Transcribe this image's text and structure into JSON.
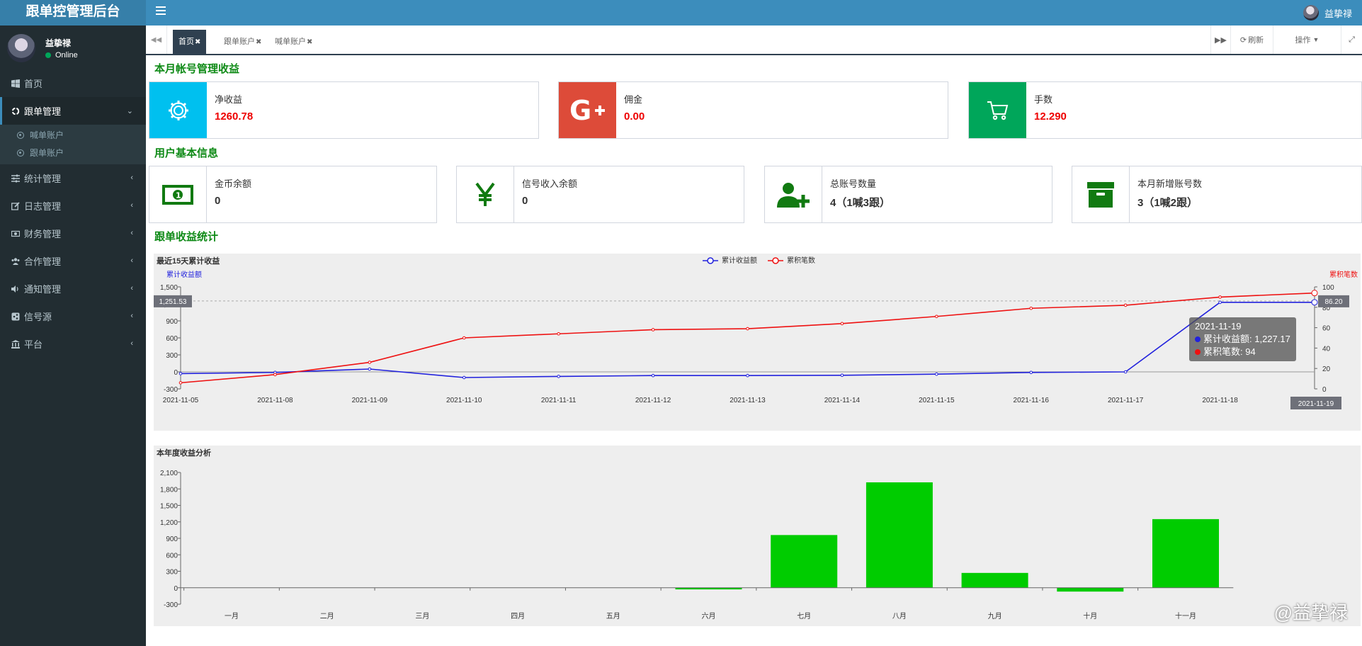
{
  "app": {
    "title": "跟单控管理后台"
  },
  "header": {
    "username": "益挚禄"
  },
  "sidebar": {
    "user": {
      "name": "益挚禄",
      "status": "Online"
    },
    "items": [
      {
        "label": "首页",
        "icon": "windows-icon"
      },
      {
        "label": "跟单管理",
        "icon": "recycle-icon"
      },
      {
        "label": "统计管理",
        "icon": "sliders-icon"
      },
      {
        "label": "日志管理",
        "icon": "edit-icon"
      },
      {
        "label": "财务管理",
        "icon": "money-icon"
      },
      {
        "label": "合作管理",
        "icon": "users-icon"
      },
      {
        "label": "通知管理",
        "icon": "volume-icon"
      },
      {
        "label": "信号源",
        "icon": "share-icon"
      },
      {
        "label": "平台",
        "icon": "bank-icon"
      }
    ],
    "submenu": [
      {
        "label": "喊单账户"
      },
      {
        "label": "跟单账户"
      }
    ]
  },
  "tabs": {
    "items": [
      {
        "label": "首页"
      },
      {
        "label": "跟单账户"
      },
      {
        "label": "喊单账户"
      }
    ],
    "close_glyph": "✖",
    "refresh": "刷新",
    "actions": "操作"
  },
  "sections": {
    "monthly_title": "本月帐号管理收益",
    "user_info_title": "用户基本信息",
    "stats_title": "跟单收益统计"
  },
  "monthly": [
    {
      "label": "净收益",
      "value": "1260.78",
      "color": "#00c0ef",
      "icon": "gear-icon"
    },
    {
      "label": "佣金",
      "value": "0.00",
      "color": "#dd4b39",
      "icon": "google-plus-icon"
    },
    {
      "label": "手数",
      "value": "12.290",
      "color": "#00a65a",
      "icon": "cart-icon"
    }
  ],
  "user_info": [
    {
      "label": "金币余额",
      "value": "0",
      "icon": "money-bill-icon"
    },
    {
      "label": "信号收入余额",
      "value": "0",
      "icon": "yen-icon"
    },
    {
      "label": "总账号数量",
      "value": "4（1喊3跟）",
      "icon": "user-plus-icon"
    },
    {
      "label": "本月新增账号数",
      "value": "3（1喊2跟）",
      "icon": "archive-icon"
    }
  ],
  "chart_data": [
    {
      "type": "line",
      "title": "最近15天累计收益",
      "x": [
        "2021-11-05",
        "2021-11-08",
        "2021-11-09",
        "2021-11-10",
        "2021-11-11",
        "2021-11-12",
        "2021-11-13",
        "2021-11-14",
        "2021-11-15",
        "2021-11-16",
        "2021-11-17",
        "2021-11-18",
        "2021-11-19"
      ],
      "series": [
        {
          "name": "累计收益额",
          "axis": "left",
          "color": "#2222dd",
          "values": [
            -30,
            -10,
            50,
            -100,
            -80,
            -65,
            -65,
            -60,
            -40,
            -10,
            0,
            1227.17,
            1227.17
          ]
        },
        {
          "name": "累积笔数",
          "axis": "right",
          "color": "#ee1111",
          "values": [
            6,
            14,
            26,
            50,
            54,
            58,
            59,
            64,
            71,
            79,
            82,
            90,
            94
          ]
        }
      ],
      "left_axis": {
        "label": "累计收益额",
        "min": -300,
        "max": 1500,
        "ticks": [
          "-300",
          "0",
          "300",
          "600",
          "900",
          "1,200",
          "1,500"
        ]
      },
      "right_axis": {
        "label": "累积笔数",
        "min": 0,
        "max": 100,
        "ticks": [
          "0",
          "20",
          "40",
          "60",
          "80",
          "100"
        ]
      },
      "crosshair": {
        "left_value": "1,251.53",
        "right_value": "86.20",
        "x_label": "2021-11-19"
      },
      "tooltip": {
        "title": "2021-11-19",
        "line1": "累计收益额: 1,227.17",
        "line2": "累积笔数: 94"
      },
      "legend": "top-center"
    },
    {
      "type": "bar",
      "title": "本年度收益分析",
      "categories": [
        "一月",
        "二月",
        "三月",
        "四月",
        "五月",
        "六月",
        "七月",
        "八月",
        "九月",
        "十月",
        "十一月"
      ],
      "values": [
        0,
        0,
        0,
        0,
        0,
        -30,
        960,
        1920,
        270,
        -70,
        1250
      ],
      "color": "#00cc00",
      "ylim": [
        -300,
        2100
      ],
      "y_ticks": [
        "-300",
        "0",
        "300",
        "600",
        "900",
        "1,200",
        "1,500",
        "1,800",
        "2,100"
      ]
    }
  ],
  "watermark": "@益挚禄"
}
